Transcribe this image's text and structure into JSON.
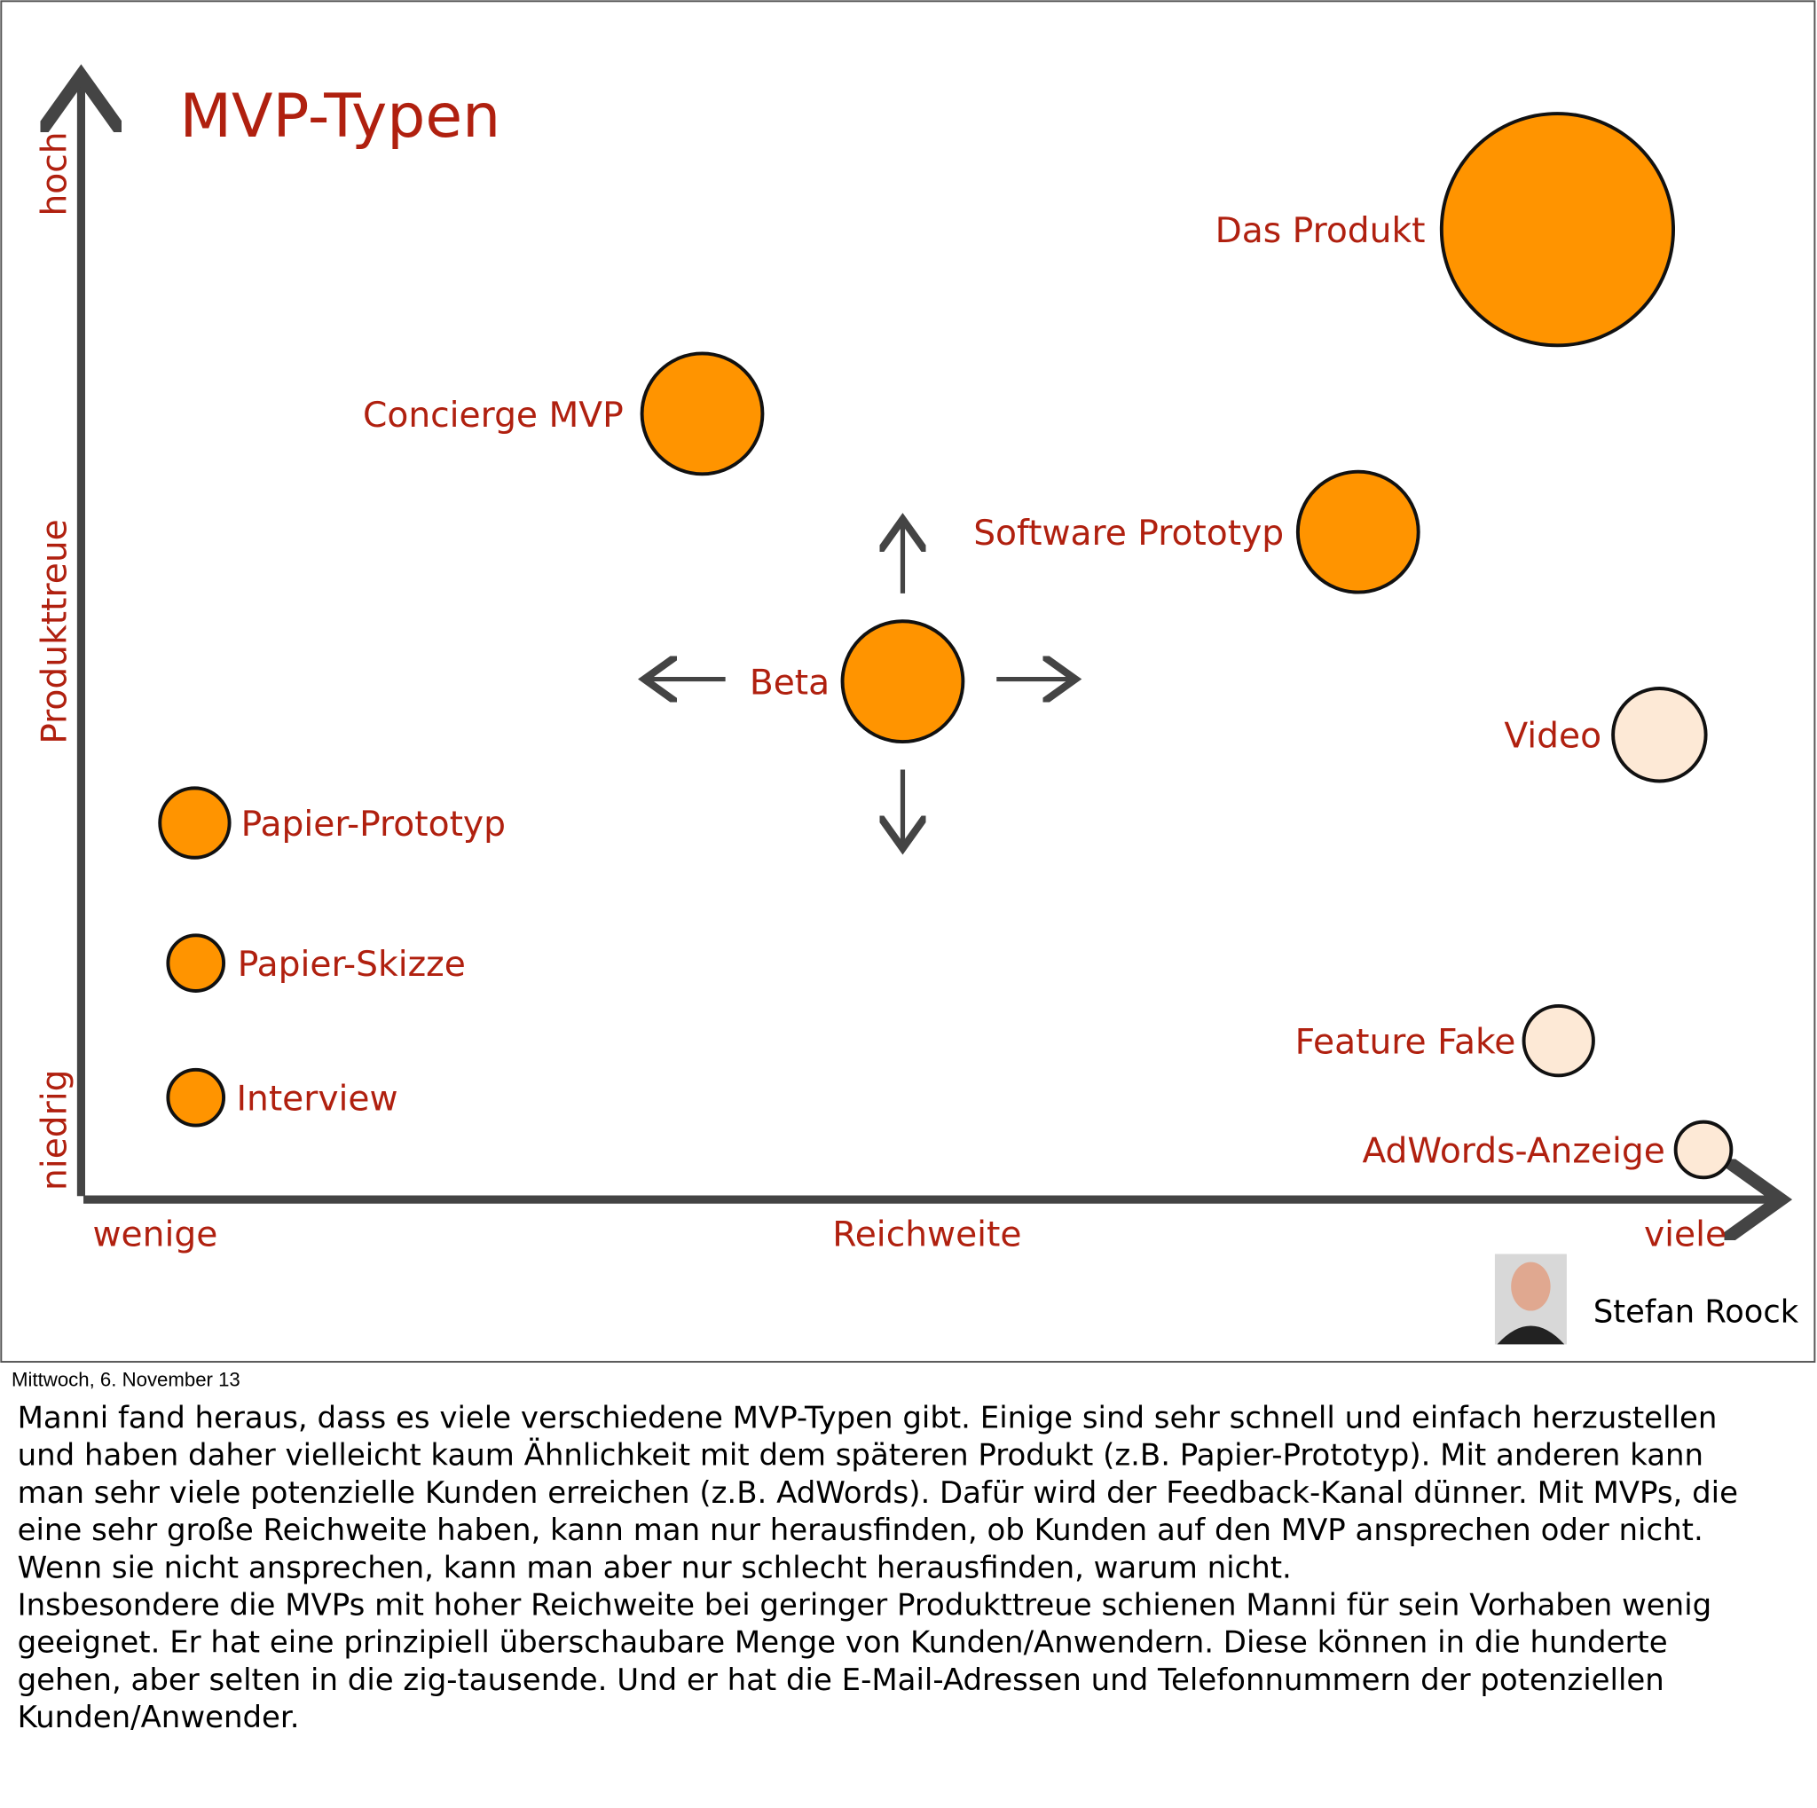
{
  "title": "MVP-Typen",
  "axes": {
    "y_top": "hoch",
    "y_label": "Produkttreue",
    "y_bottom": "niedrig",
    "x_left": "wenige",
    "x_label": "Reichweite",
    "x_right": "viele"
  },
  "nodes": [
    {
      "label": "Das Produkt",
      "color": "#ff9400"
    },
    {
      "label": "Concierge MVP",
      "color": "#ff9400"
    },
    {
      "label": "Software Prototyp",
      "color": "#ff9400"
    },
    {
      "label": "Beta",
      "color": "#ff9400"
    },
    {
      "label": "Video",
      "color": "#fde9d6"
    },
    {
      "label": "Papier-Prototyp",
      "color": "#ff9400"
    },
    {
      "label": "Papier-Skizze",
      "color": "#ff9400"
    },
    {
      "label": "Interview",
      "color": "#ff9400"
    },
    {
      "label": "Feature Fake",
      "color": "#fde9d6"
    },
    {
      "label": "AdWords-Anzeige",
      "color": "#fde9d6"
    }
  ],
  "author": "Stefan Roock",
  "date": "Mittwoch, 6. November 13",
  "notes": [
    "Manni fand heraus, dass es viele verschiedene MVP-Typen gibt. Einige sind sehr schnell und einfach herzustellen",
    "und haben daher vielleicht kaum Ähnlichkeit mit dem späteren Produkt (z.B. Papier-Prototyp). Mit anderen kann",
    "man sehr viele potenzielle Kunden erreichen (z.B. AdWords). Dafür wird der Feedback-Kanal dünner. Mit MVPs, die",
    "eine sehr große Reichweite haben, kann man nur herausfinden, ob Kunden auf den MVP ansprechen oder nicht.",
    "Wenn sie nicht ansprechen, kann man aber nur schlecht herausfinden, warum nicht.",
    "Insbesondere die MVPs mit hoher Reichweite bei geringer Produkttreue schienen Manni für sein Vorhaben wenig",
    "geeignet. Er hat eine prinzipiell überschaubare Menge von Kunden/Anwendern. Diese können in die hunderte",
    "gehen, aber selten in die zig-tausende. Und er hat die E-Mail-Adressen und Telefonnummern der potenziellen",
    "Kunden/Anwender."
  ]
}
